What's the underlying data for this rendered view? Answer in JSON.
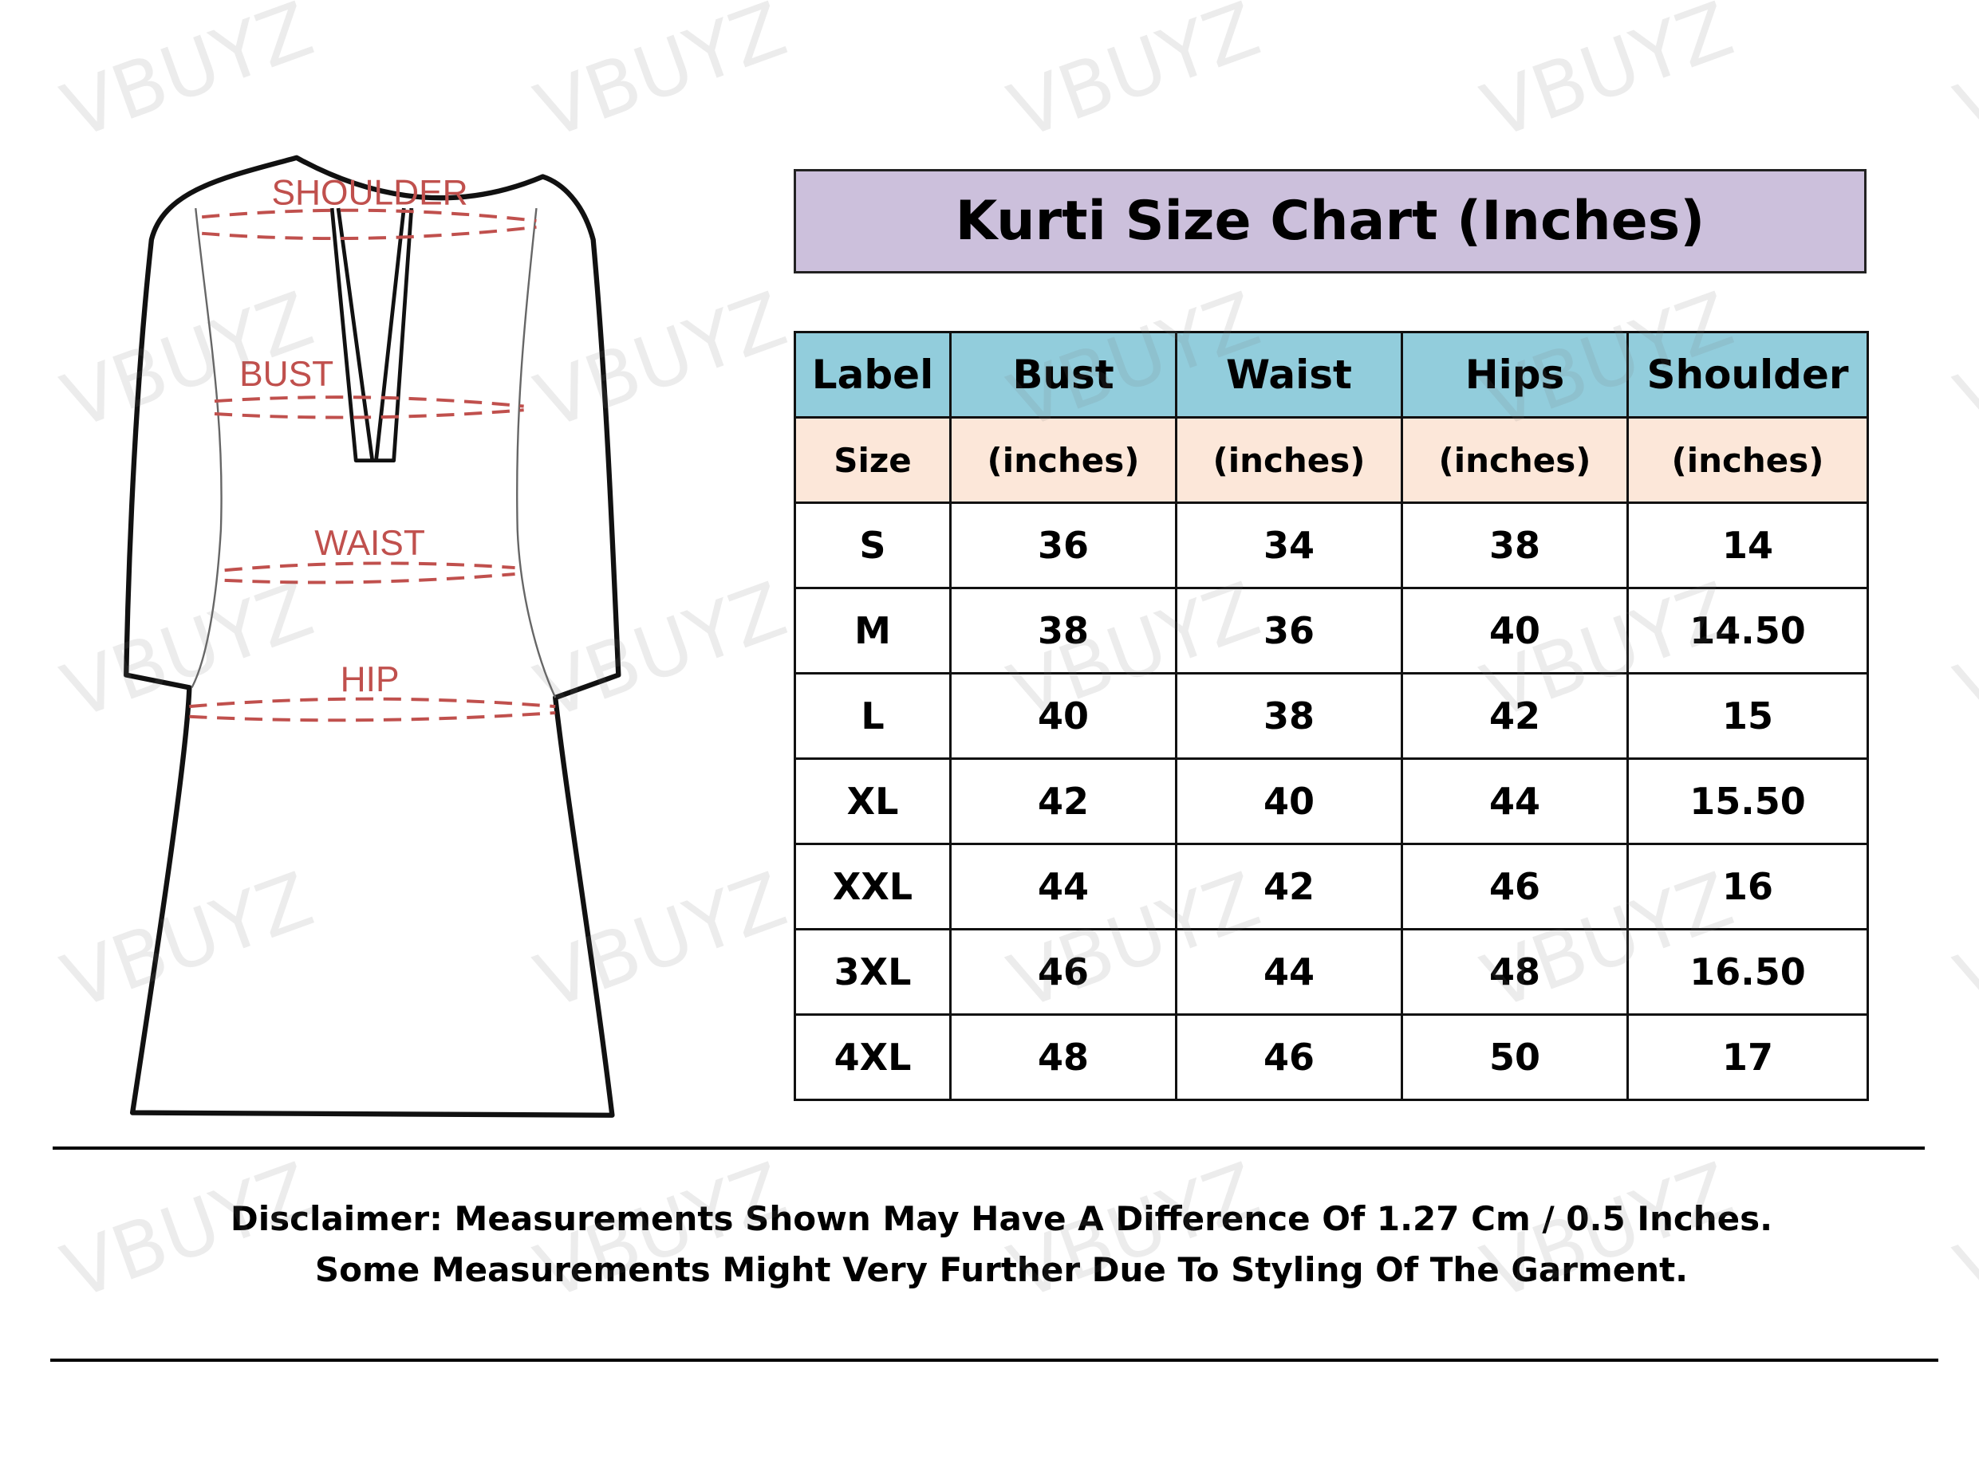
{
  "watermark": "VBUYZ",
  "diagram": {
    "labels": [
      "SHOULDER",
      "BUST",
      "WAIST",
      "HIP"
    ],
    "label_color": "#c0504d"
  },
  "title": "Kurti Size Chart (Inches)",
  "colors": {
    "title_bg": "#ccc0dc",
    "header_bg": "#92cddc",
    "unit_row_bg": "#fce7d9"
  },
  "table": {
    "headers": [
      "Label",
      "Bust",
      "Waist",
      "Hips",
      "Shoulder"
    ],
    "units": [
      "Size",
      "(inches)",
      "(inches)",
      "(inches)",
      "(inches)"
    ],
    "rows": [
      [
        "S",
        "36",
        "34",
        "38",
        "14"
      ],
      [
        "M",
        "38",
        "36",
        "40",
        "14.50"
      ],
      [
        "L",
        "40",
        "38",
        "42",
        "15"
      ],
      [
        "XL",
        "42",
        "40",
        "44",
        "15.50"
      ],
      [
        "XXL",
        "44",
        "42",
        "46",
        "16"
      ],
      [
        "3XL",
        "46",
        "44",
        "48",
        "16.50"
      ],
      [
        "4XL",
        "48",
        "46",
        "50",
        "17"
      ]
    ]
  },
  "disclaimer": {
    "line1": "Disclaimer: Measurements Shown May Have A Difference Of 1.27 Cm / 0.5 Inches.",
    "line2": "Some Measurements Might Very Further Due To Styling Of The Garment."
  }
}
